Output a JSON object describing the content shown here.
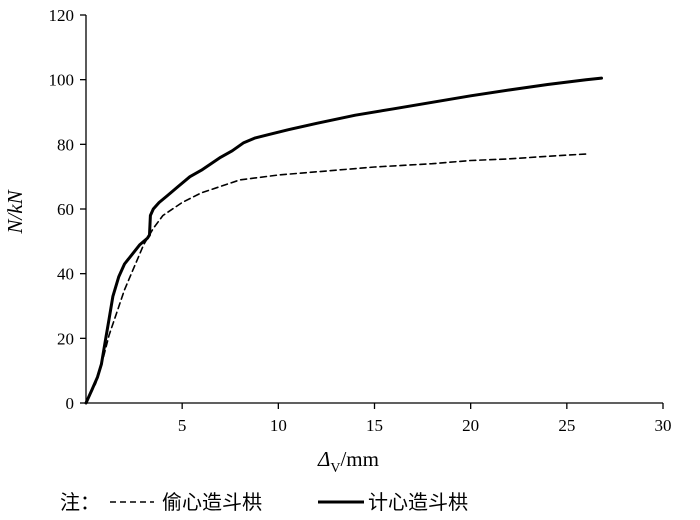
{
  "chart_data": {
    "type": "line",
    "ylabel": "N/kN",
    "xlabel_parts": {
      "symbol": "Δ",
      "subscript": "V",
      "unit": "/mm"
    },
    "xlim": [
      0,
      30
    ],
    "ylim": [
      0,
      120
    ],
    "x_ticks": [
      5,
      10,
      15,
      20,
      25,
      30
    ],
    "y_ticks": [
      0,
      20,
      40,
      60,
      80,
      100,
      120
    ],
    "grid": false,
    "legend": {
      "prefix": "注：",
      "position": "bottom"
    },
    "series": [
      {
        "name": "偷心造斗栱",
        "style": "dashed",
        "color": "#000000",
        "points": [
          [
            0,
            0
          ],
          [
            0.5,
            6
          ],
          [
            0.9,
            14
          ],
          [
            1.2,
            21
          ],
          [
            1.6,
            28
          ],
          [
            2.0,
            35
          ],
          [
            2.5,
            42
          ],
          [
            3.0,
            49
          ],
          [
            3.5,
            54
          ],
          [
            4.0,
            58
          ],
          [
            5.0,
            62
          ],
          [
            6.0,
            65
          ],
          [
            7.0,
            67
          ],
          [
            8.0,
            69
          ],
          [
            10.0,
            70.5
          ],
          [
            12.0,
            71.5
          ],
          [
            15.0,
            73
          ],
          [
            18.0,
            74
          ],
          [
            20.0,
            75
          ],
          [
            22.0,
            75.5
          ],
          [
            24.0,
            76.3
          ],
          [
            26.0,
            77
          ]
        ]
      },
      {
        "name": "计心造斗栱",
        "style": "solid",
        "color": "#000000",
        "points": [
          [
            0,
            0
          ],
          [
            0.3,
            4
          ],
          [
            0.6,
            8
          ],
          [
            0.8,
            12
          ],
          [
            1.0,
            19
          ],
          [
            1.2,
            26
          ],
          [
            1.4,
            33
          ],
          [
            1.7,
            39
          ],
          [
            2.0,
            43
          ],
          [
            2.4,
            46
          ],
          [
            2.8,
            49
          ],
          [
            3.2,
            51
          ],
          [
            3.3,
            52
          ],
          [
            3.35,
            58
          ],
          [
            3.5,
            60
          ],
          [
            3.8,
            62
          ],
          [
            4.2,
            64
          ],
          [
            4.8,
            67
          ],
          [
            5.4,
            70
          ],
          [
            6.0,
            72
          ],
          [
            6.5,
            74
          ],
          [
            7.0,
            76
          ],
          [
            7.6,
            78
          ],
          [
            8.2,
            80.5
          ],
          [
            8.8,
            82
          ],
          [
            9.5,
            83
          ],
          [
            10.5,
            84.5
          ],
          [
            12.0,
            86.5
          ],
          [
            14.0,
            89
          ],
          [
            16.0,
            91
          ],
          [
            18.0,
            93
          ],
          [
            20.0,
            95
          ],
          [
            22.0,
            96.8
          ],
          [
            24.0,
            98.5
          ],
          [
            26.0,
            100
          ],
          [
            26.8,
            100.5
          ]
        ]
      }
    ]
  }
}
